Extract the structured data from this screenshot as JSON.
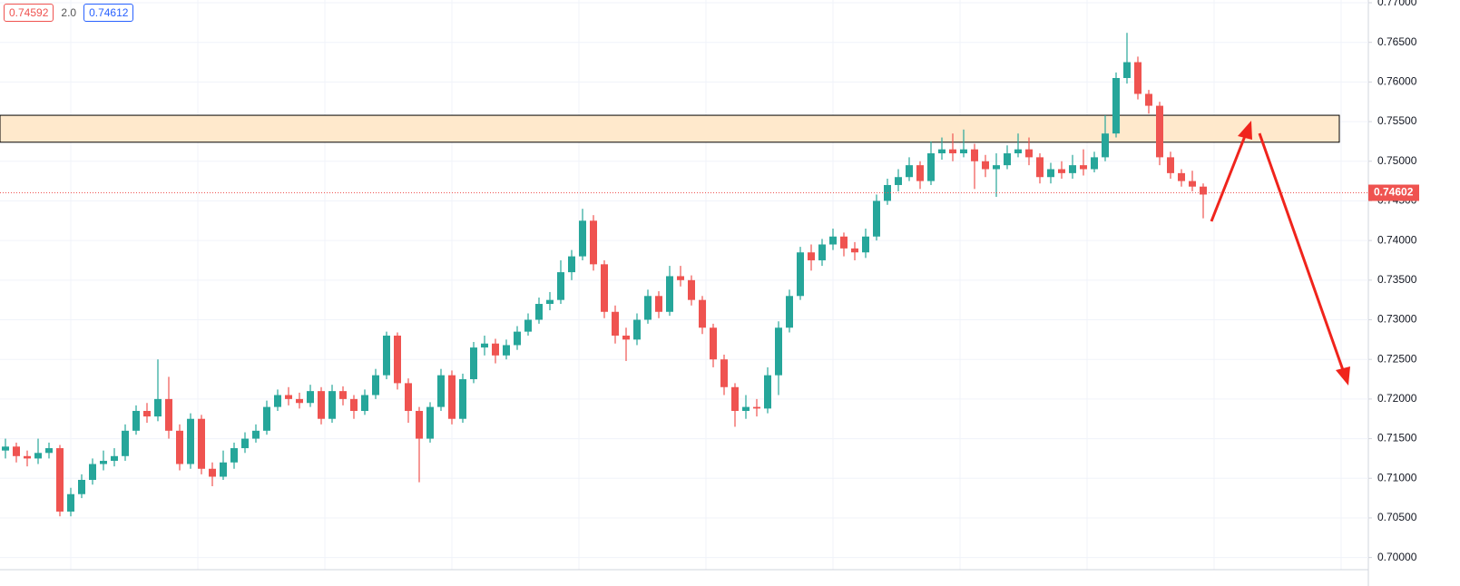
{
  "header": {
    "bid": "0.74592",
    "spread": "2.0",
    "ask": "0.74612"
  },
  "chart_data": {
    "type": "candlestick",
    "ylim": [
      0.6995,
      0.77
    ],
    "yticks": [
      {
        "value": 0.7,
        "label": "0.70000"
      },
      {
        "value": 0.705,
        "label": "0.70500"
      },
      {
        "value": 0.71,
        "label": "0.71000"
      },
      {
        "value": 0.715,
        "label": "0.71500"
      },
      {
        "value": 0.72,
        "label": "0.72000"
      },
      {
        "value": 0.725,
        "label": "0.72500"
      },
      {
        "value": 0.73,
        "label": "0.73000"
      },
      {
        "value": 0.735,
        "label": "0.73500"
      },
      {
        "value": 0.74,
        "label": "0.74000"
      },
      {
        "value": 0.745,
        "label": "0.74500"
      },
      {
        "value": 0.75,
        "label": "0.75000"
      },
      {
        "value": 0.755,
        "label": "0.75500"
      },
      {
        "value": 0.76,
        "label": "0.76000"
      },
      {
        "value": 0.765,
        "label": "0.76500"
      },
      {
        "value": 0.77,
        "label": "0.77000"
      }
    ],
    "grid": true,
    "up_color": "#26a69a",
    "down_color": "#ef5350",
    "last_price": 0.74602,
    "zone": [
      0.7524,
      0.7558
    ],
    "open": [
      0.7135,
      0.714,
      0.7128,
      0.7125,
      0.7132,
      0.7138,
      0.7058,
      0.708,
      0.7098,
      0.7118,
      0.7122,
      0.7128,
      0.716,
      0.7185,
      0.7178,
      0.72,
      0.716,
      0.7118,
      0.7175,
      0.7112,
      0.7102,
      0.712,
      0.7138,
      0.715,
      0.716,
      0.719,
      0.7205,
      0.72,
      0.7195,
      0.721,
      0.7175,
      0.721,
      0.72,
      0.7185,
      0.7205,
      0.723,
      0.728,
      0.722,
      0.7185,
      0.715,
      0.719,
      0.723,
      0.7175,
      0.7225,
      0.7265,
      0.727,
      0.7255,
      0.7268,
      0.7285,
      0.73,
      0.732,
      0.7325,
      0.736,
      0.738,
      0.7425,
      0.737,
      0.731,
      0.728,
      0.7275,
      0.73,
      0.733,
      0.731,
      0.7355,
      0.735,
      0.7325,
      0.729,
      0.725,
      0.7215,
      0.7185,
      0.719,
      0.7188,
      0.723,
      0.729,
      0.733,
      0.7385,
      0.7375,
      0.7395,
      0.7405,
      0.739,
      0.7385,
      0.7405,
      0.745,
      0.747,
      0.748,
      0.7495,
      0.7475,
      0.751,
      0.7515,
      0.751,
      0.7515,
      0.75,
      0.749,
      0.7495,
      0.751,
      0.7515,
      0.7505,
      0.748,
      0.749,
      0.7485,
      0.7495,
      0.749,
      0.7505,
      0.7535,
      0.7605,
      0.7625,
      0.7585,
      0.757,
      0.7505,
      0.7485,
      0.7475,
      0.7468
    ],
    "high": [
      0.715,
      0.7145,
      0.7135,
      0.715,
      0.7145,
      0.7142,
      0.7088,
      0.7105,
      0.7125,
      0.7135,
      0.7138,
      0.7168,
      0.7192,
      0.7195,
      0.725,
      0.7228,
      0.7168,
      0.7182,
      0.718,
      0.712,
      0.7135,
      0.7145,
      0.7158,
      0.7168,
      0.7198,
      0.7212,
      0.7215,
      0.7208,
      0.7218,
      0.7215,
      0.7218,
      0.7216,
      0.7205,
      0.7212,
      0.7238,
      0.7285,
      0.7284,
      0.7226,
      0.719,
      0.7196,
      0.7238,
      0.7236,
      0.7232,
      0.7272,
      0.728,
      0.7276,
      0.7275,
      0.7292,
      0.7308,
      0.7328,
      0.7335,
      0.7375,
      0.7388,
      0.744,
      0.7432,
      0.7375,
      0.7318,
      0.729,
      0.7308,
      0.7338,
      0.7336,
      0.7368,
      0.7368,
      0.7356,
      0.733,
      0.7295,
      0.7256,
      0.722,
      0.7205,
      0.72,
      0.724,
      0.7298,
      0.7338,
      0.7392,
      0.7395,
      0.7402,
      0.7415,
      0.741,
      0.7398,
      0.7415,
      0.7458,
      0.7478,
      0.749,
      0.7505,
      0.75,
      0.7525,
      0.753,
      0.7535,
      0.754,
      0.7522,
      0.7508,
      0.751,
      0.752,
      0.7535,
      0.753,
      0.751,
      0.7498,
      0.75,
      0.7508,
      0.7515,
      0.7512,
      0.7558,
      0.7612,
      0.7662,
      0.7632,
      0.759,
      0.7575,
      0.7512,
      0.749,
      0.7488,
      0.7472
    ],
    "low": [
      0.7125,
      0.712,
      0.7115,
      0.7118,
      0.7125,
      0.7052,
      0.7052,
      0.7075,
      0.7092,
      0.711,
      0.7115,
      0.7122,
      0.7155,
      0.717,
      0.7172,
      0.715,
      0.711,
      0.7112,
      0.7105,
      0.709,
      0.7098,
      0.7112,
      0.7132,
      0.7145,
      0.7155,
      0.7185,
      0.7192,
      0.7188,
      0.719,
      0.7168,
      0.717,
      0.7192,
      0.7175,
      0.718,
      0.72,
      0.7225,
      0.7212,
      0.717,
      0.7095,
      0.7145,
      0.7185,
      0.7168,
      0.717,
      0.722,
      0.7255,
      0.7245,
      0.725,
      0.7262,
      0.728,
      0.7295,
      0.7312,
      0.732,
      0.735,
      0.7375,
      0.7362,
      0.7302,
      0.727,
      0.7248,
      0.7268,
      0.7295,
      0.7302,
      0.7305,
      0.7342,
      0.7318,
      0.7282,
      0.724,
      0.7205,
      0.7165,
      0.7175,
      0.7178,
      0.7182,
      0.7205,
      0.7284,
      0.7325,
      0.7362,
      0.7368,
      0.7388,
      0.738,
      0.7375,
      0.7378,
      0.74,
      0.7445,
      0.7462,
      0.7475,
      0.7465,
      0.747,
      0.7502,
      0.75,
      0.7505,
      0.7465,
      0.748,
      0.7455,
      0.749,
      0.7505,
      0.7495,
      0.7472,
      0.7472,
      0.7478,
      0.7478,
      0.7482,
      0.7486,
      0.75,
      0.753,
      0.7598,
      0.7578,
      0.756,
      0.7495,
      0.7478,
      0.7468,
      0.7462,
      0.7428
    ],
    "close": [
      0.714,
      0.7128,
      0.7125,
      0.7132,
      0.7138,
      0.7058,
      0.708,
      0.7098,
      0.7118,
      0.7122,
      0.7128,
      0.716,
      0.7185,
      0.7178,
      0.72,
      0.716,
      0.7118,
      0.7175,
      0.7112,
      0.7102,
      0.712,
      0.7138,
      0.715,
      0.716,
      0.719,
      0.7205,
      0.72,
      0.7195,
      0.721,
      0.7175,
      0.721,
      0.72,
      0.7185,
      0.7205,
      0.723,
      0.728,
      0.722,
      0.7185,
      0.715,
      0.719,
      0.723,
      0.7175,
      0.7225,
      0.7265,
      0.727,
      0.7255,
      0.7268,
      0.7285,
      0.73,
      0.732,
      0.7325,
      0.736,
      0.738,
      0.7425,
      0.737,
      0.731,
      0.728,
      0.7275,
      0.73,
      0.733,
      0.731,
      0.7355,
      0.735,
      0.7325,
      0.729,
      0.725,
      0.7215,
      0.7185,
      0.719,
      0.7188,
      0.723,
      0.729,
      0.733,
      0.7385,
      0.7375,
      0.7395,
      0.7405,
      0.739,
      0.7385,
      0.7405,
      0.745,
      0.747,
      0.748,
      0.7495,
      0.7475,
      0.751,
      0.7515,
      0.751,
      0.7515,
      0.75,
      0.749,
      0.7495,
      0.751,
      0.7515,
      0.7505,
      0.748,
      0.749,
      0.7485,
      0.7495,
      0.749,
      0.7505,
      0.7535,
      0.7605,
      0.7625,
      0.7585,
      0.757,
      0.7505,
      0.7485,
      0.7475,
      0.7468,
      0.7458
    ]
  }
}
